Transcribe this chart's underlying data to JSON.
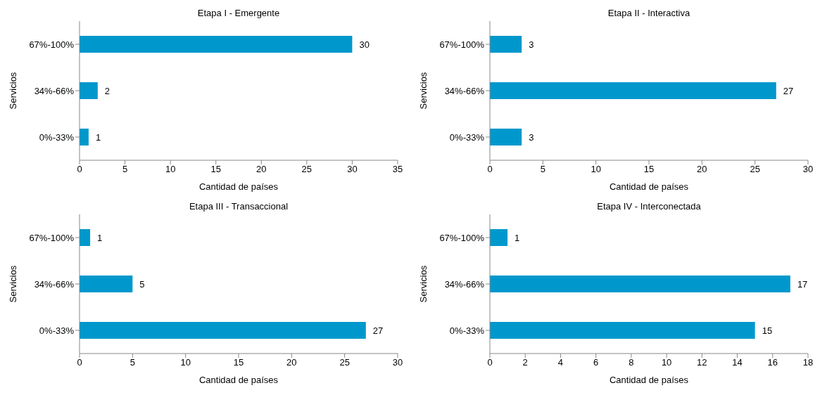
{
  "chart_data": [
    {
      "type": "bar",
      "orientation": "horizontal",
      "title": "Etapa I - Emergente",
      "xlabel": "Cantidad de países",
      "ylabel": "Servicios",
      "categories": [
        "67%-100%",
        "34%-66%",
        "0%-33%"
      ],
      "values": [
        30,
        2,
        1
      ],
      "color": "#0098cc",
      "xlim": [
        0,
        35
      ],
      "xticks": [
        0,
        5,
        10,
        15,
        20,
        25,
        30,
        35
      ],
      "data_labels": true
    },
    {
      "type": "bar",
      "orientation": "horizontal",
      "title": "Etapa II - Interactiva",
      "xlabel": "Cantidad de países",
      "ylabel": "Servicios",
      "categories": [
        "67%-100%",
        "34%-66%",
        "0%-33%"
      ],
      "values": [
        3,
        27,
        3
      ],
      "color": "#0098cc",
      "xlim": [
        0,
        30
      ],
      "xticks": [
        0,
        5,
        10,
        15,
        20,
        25,
        30
      ],
      "data_labels": true
    },
    {
      "type": "bar",
      "orientation": "horizontal",
      "title": "Etapa III - Transaccional",
      "xlabel": "Cantidad de países",
      "ylabel": "Servicios",
      "categories": [
        "67%-100%",
        "34%-66%",
        "0%-33%"
      ],
      "values": [
        1,
        5,
        27
      ],
      "color": "#0098cc",
      "xlim": [
        0,
        30
      ],
      "xticks": [
        0,
        5,
        10,
        15,
        20,
        25,
        30
      ],
      "data_labels": true
    },
    {
      "type": "bar",
      "orientation": "horizontal",
      "title": "Etapa IV - Interconectada",
      "xlabel": "Cantidad de países",
      "ylabel": "Servicios",
      "categories": [
        "67%-100%",
        "34%-66%",
        "0%-33%"
      ],
      "values": [
        1,
        17,
        15
      ],
      "color": "#0098cc",
      "xlim": [
        0,
        18
      ],
      "xticks": [
        0,
        2,
        4,
        6,
        8,
        10,
        12,
        14,
        16,
        18
      ],
      "data_labels": true
    }
  ]
}
